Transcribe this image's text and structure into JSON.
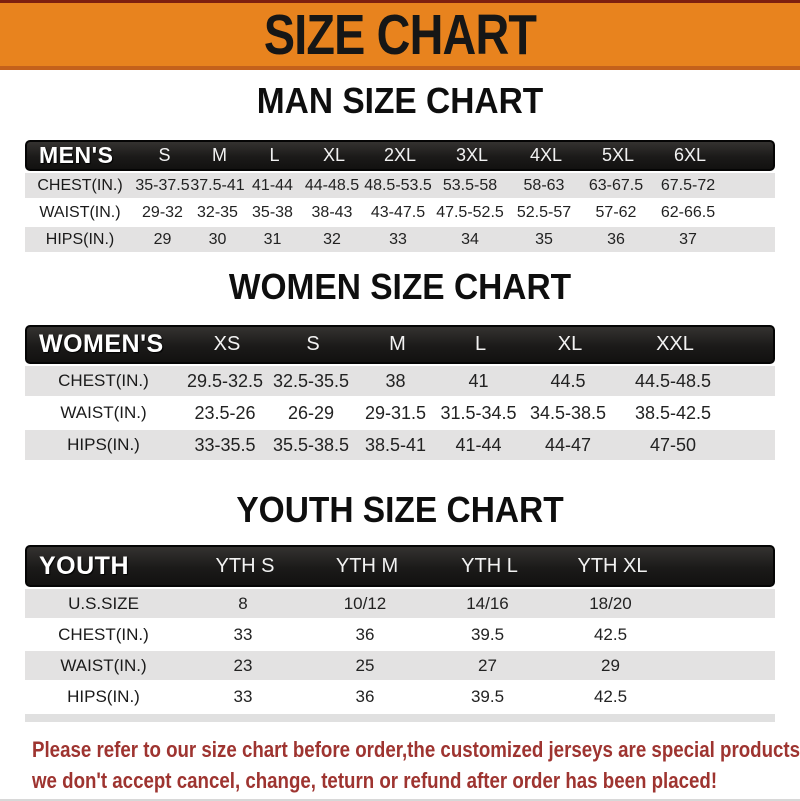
{
  "banner": {
    "title": "SIZE CHART"
  },
  "colors": {
    "banner_orange": "#E8831E",
    "banner_edge_red": "#7E200F",
    "header_bar_black": "#1B1A19",
    "stripe_gray": "#E3E2E2",
    "footer_red": "#9E3430"
  },
  "sections": [
    {
      "id": "men",
      "heading": "MAN SIZE CHART",
      "corner": "MEN'S",
      "sizes": [
        "S",
        "M",
        "L",
        "XL",
        "2XL",
        "3XL",
        "4XL",
        "5XL",
        "6XL"
      ],
      "rows": [
        {
          "label": "CHEST(IN.)",
          "values": [
            "35-37.5",
            "37.5-41",
            "41-44",
            "44-48.5",
            "48.5-53.5",
            "53.5-58",
            "58-63",
            "63-67.5",
            "67.5-72"
          ]
        },
        {
          "label": "WAIST(IN.)",
          "values": [
            "29-32",
            "32-35",
            "35-38",
            "38-43",
            "43-47.5",
            "47.5-52.5",
            "52.5-57",
            "57-62",
            "62-66.5"
          ]
        },
        {
          "label": "HIPS(IN.)",
          "values": [
            "29",
            "30",
            "31",
            "32",
            "33",
            "34",
            "35",
            "36",
            "37"
          ]
        }
      ]
    },
    {
      "id": "women",
      "heading": "WOMEN SIZE CHART",
      "corner": "WOMEN'S",
      "sizes": [
        "XS",
        "S",
        "M",
        "L",
        "XL",
        "XXL"
      ],
      "rows": [
        {
          "label": "CHEST(IN.)",
          "values": [
            "29.5-32.5",
            "32.5-35.5",
            "38",
            "41",
            "44.5",
            "44.5-48.5"
          ]
        },
        {
          "label": "WAIST(IN.)",
          "values": [
            "23.5-26",
            "26-29",
            "29-31.5",
            "31.5-34.5",
            "34.5-38.5",
            "38.5-42.5"
          ]
        },
        {
          "label": "HIPS(IN.)",
          "values": [
            "33-35.5",
            "35.5-38.5",
            "38.5-41",
            "41-44",
            "44-47",
            "47-50"
          ]
        }
      ]
    },
    {
      "id": "youth",
      "heading": "YOUTH SIZE CHART",
      "corner": "YOUTH",
      "sizes": [
        "YTH S",
        "YTH M",
        "YTH L",
        "YTH XL"
      ],
      "rows": [
        {
          "label": "U.S.SIZE",
          "values": [
            "8",
            "10/12",
            "14/16",
            "18/20"
          ]
        },
        {
          "label": "CHEST(IN.)",
          "values": [
            "33",
            "36",
            "39.5",
            "42.5"
          ]
        },
        {
          "label": "WAIST(IN.)",
          "values": [
            "23",
            "25",
            "27",
            "29"
          ]
        },
        {
          "label": "HIPS(IN.)",
          "values": [
            "33",
            "36",
            "39.5",
            "42.5"
          ]
        }
      ]
    }
  ],
  "footer": {
    "line1": "Please refer to our size chart before order,the customized jerseys are special products,",
    "line2": "we don't accept cancel, change, teturn or refund after order has been placed!"
  }
}
